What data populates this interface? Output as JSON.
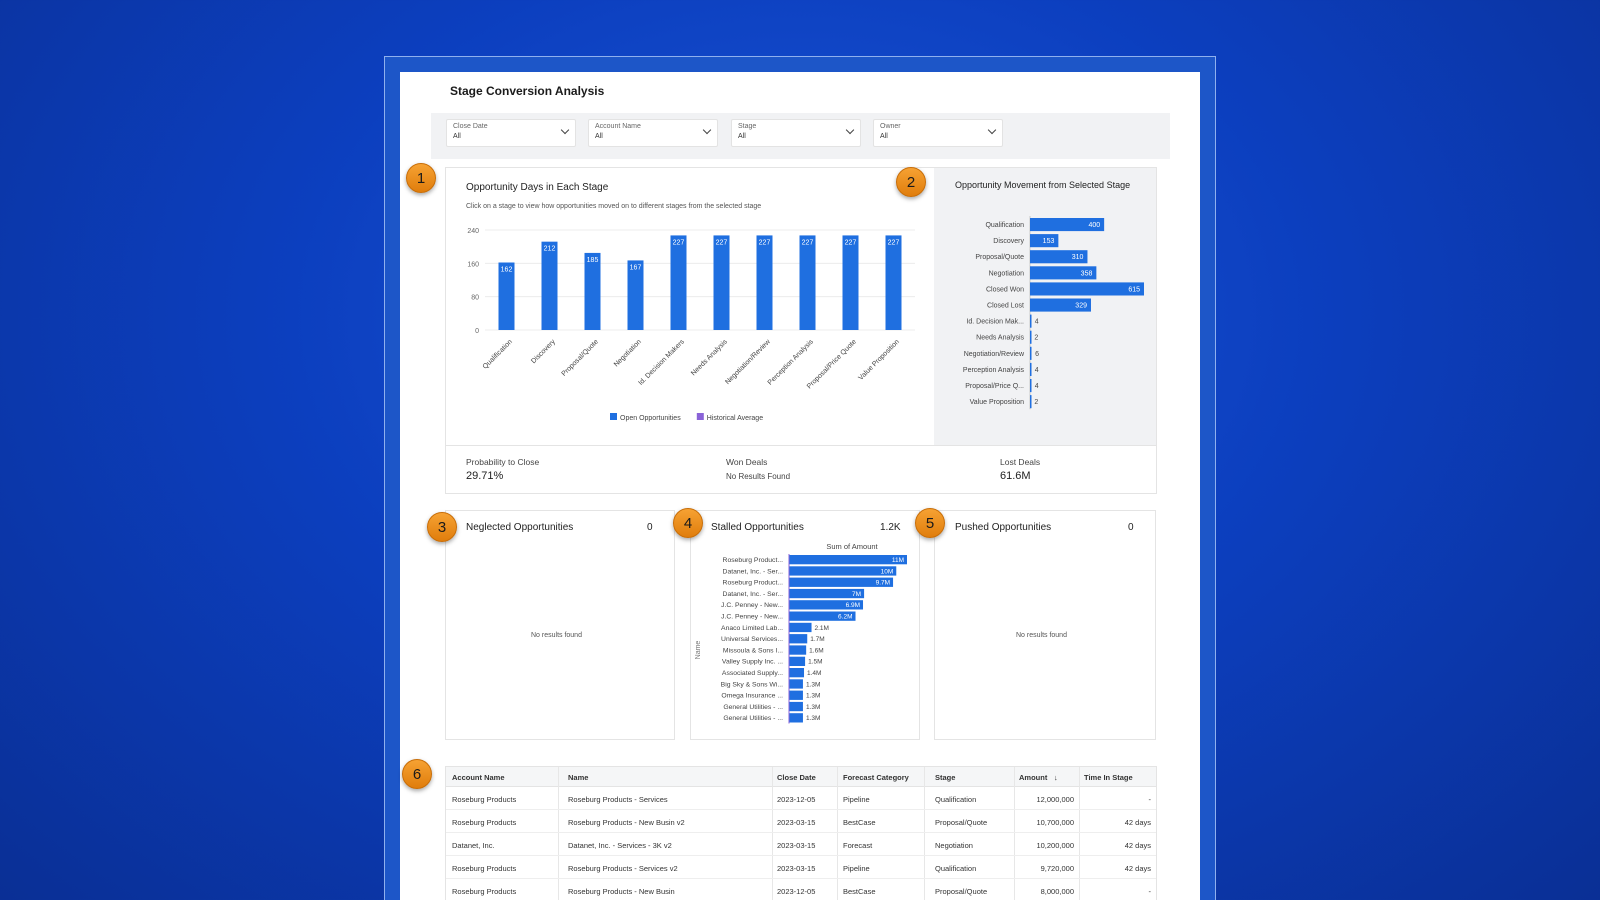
{
  "page_title": "Stage Conversion Analysis",
  "filters": [
    {
      "label": "Close Date",
      "value": "All"
    },
    {
      "label": "Account Name",
      "value": "All"
    },
    {
      "label": "Stage",
      "value": "All"
    },
    {
      "label": "Owner",
      "value": "All"
    }
  ],
  "callouts": [
    "1",
    "2",
    "3",
    "4",
    "5",
    "6"
  ],
  "days_chart": {
    "title": "Opportunity Days in Each Stage",
    "subtitle": "Click on a stage to view how opportunities moved on to different stages from the selected stage",
    "legend": [
      {
        "name": "Open Opportunities",
        "color": "#1f6fe0"
      },
      {
        "name": "Historical Average",
        "color": "#8a63d8"
      }
    ]
  },
  "movement_chart": {
    "title": "Opportunity Movement from Selected Stage"
  },
  "chart_data": [
    {
      "type": "bar",
      "title": "Opportunity Days in Each Stage",
      "categories": [
        "Qualification",
        "Discovery",
        "Proposal/Quote",
        "Negotiation",
        "Id. Decision Makers",
        "Needs Analysis",
        "Negotiation/Review",
        "Perception Analysis",
        "Proposal/Price Quote",
        "Value Proposition"
      ],
      "series": [
        {
          "name": "Open Opportunities",
          "values": [
            162,
            212,
            185,
            167,
            227,
            227,
            227,
            227,
            227,
            227
          ]
        }
      ],
      "yticks": [
        "0",
        "80",
        "160",
        "240"
      ],
      "ylim": [
        0,
        240
      ],
      "grid": true,
      "legend": "bottom"
    },
    {
      "type": "bar",
      "orientation": "horizontal",
      "title": "Opportunity Movement from Selected Stage",
      "categories": [
        "Qualification",
        "Discovery",
        "Proposal/Quote",
        "Negotiation",
        "Closed Won",
        "Closed Lost",
        "Id. Decision Mak...",
        "Needs Analysis",
        "Negotiation/Review",
        "Perception Analysis",
        "Proposal/Price Q...",
        "Value Proposition"
      ],
      "values": [
        400,
        153,
        310,
        358,
        615,
        329,
        4,
        2,
        6,
        4,
        4,
        2
      ],
      "labels": [
        "400",
        "153",
        "310",
        "358",
        "615",
        "329",
        "4",
        "2",
        "6",
        "4",
        "4",
        "2"
      ],
      "xlim": [
        0,
        615
      ]
    },
    {
      "type": "bar",
      "orientation": "horizontal",
      "title": "Sum of Amount",
      "ylabel": "Name",
      "categories": [
        "Roseburg Product...",
        "Datanet, Inc. - Ser...",
        "Roseburg Product...",
        "Datanet, Inc. - Ser...",
        "J.C. Penney - New...",
        "J.C. Penney - New...",
        "Anaco Limited Lab...",
        "Universal Services...",
        "Missoula & Sons I...",
        "Valley Supply Inc. ...",
        "Associated Supply...",
        "Big Sky & Sons Wi...",
        "Omega Insurance ...",
        "General Utilities - ...",
        "General Utilities - ..."
      ],
      "values": [
        11,
        10,
        9.7,
        7,
        6.9,
        6.2,
        2.1,
        1.7,
        1.6,
        1.5,
        1.4,
        1.3,
        1.3,
        1.3,
        1.3
      ],
      "labels": [
        "11M",
        "10M",
        "9.7M",
        "7M",
        "6.9M",
        "6.2M",
        "2.1M",
        "1.7M",
        "1.6M",
        "1.5M",
        "1.4M",
        "1.3M",
        "1.3M",
        "1.3M",
        "1.3M"
      ],
      "xlim": [
        0,
        11
      ]
    }
  ],
  "kpis": [
    {
      "label": "Probability to Close",
      "value": "29.71%"
    },
    {
      "label": "Won Deals",
      "value": "No Results Found"
    },
    {
      "label": "Lost Deals",
      "value": "61.6M"
    }
  ],
  "neglected": {
    "title": "Neglected Opportunities",
    "count": "0",
    "empty": "No results found"
  },
  "stalled": {
    "title": "Stalled Opportunities",
    "count": "1.2K"
  },
  "pushed": {
    "title": "Pushed Opportunities",
    "count": "0",
    "empty": "No results found"
  },
  "table": {
    "columns": [
      "Account Name",
      "Name",
      "Close Date",
      "Forecast Category",
      "Stage",
      "Amount",
      "Time In Stage"
    ],
    "sort_icon": "arrow-down-icon",
    "rows": [
      [
        "Roseburg Products",
        "Roseburg Products - Services",
        "2023-12-05",
        "Pipeline",
        "Qualification",
        "12,000,000",
        "-"
      ],
      [
        "Roseburg Products",
        "Roseburg Products - New Busin v2",
        "2023-03-15",
        "BestCase",
        "Proposal/Quote",
        "10,700,000",
        "42 days"
      ],
      [
        "Datanet, Inc.",
        "Datanet, Inc. - Services - 3K v2",
        "2023-03-15",
        "Forecast",
        "Negotiation",
        "10,200,000",
        "42 days"
      ],
      [
        "Roseburg Products",
        "Roseburg Products - Services v2",
        "2023-03-15",
        "Pipeline",
        "Qualification",
        "9,720,000",
        "42 days"
      ],
      [
        "Roseburg Products",
        "Roseburg Products - New Busin",
        "2023-12-05",
        "BestCase",
        "Proposal/Quote",
        "8,000,000",
        "-"
      ]
    ]
  },
  "colors": {
    "bar": "#1f6fe0",
    "badge": "#ee8f1f",
    "background": "#0c3fbf"
  }
}
